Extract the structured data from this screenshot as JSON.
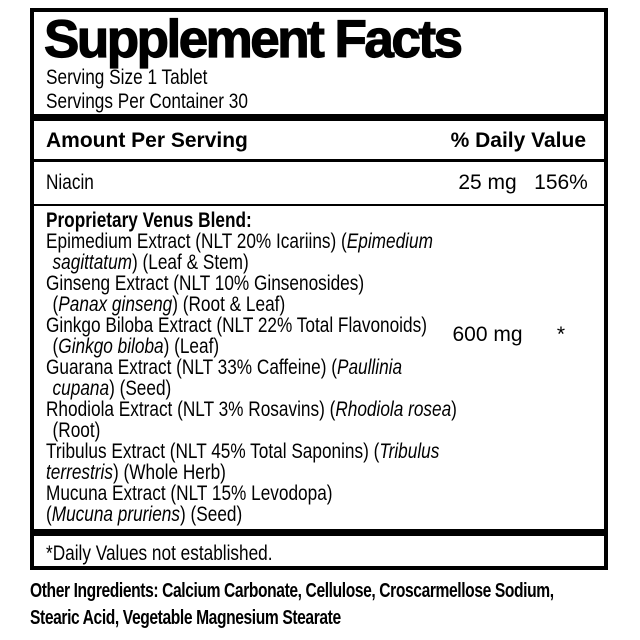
{
  "colors": {
    "text": "#000000",
    "background": "#ffffff",
    "border": "#000000"
  },
  "label": {
    "title": "Supplement Facts",
    "serving_size": "Serving Size 1 Tablet",
    "servings_per_container": "Servings Per Container 30",
    "header": {
      "amount": "Amount Per Serving",
      "daily_value": "% Daily Value"
    },
    "niacin": {
      "name": "Niacin",
      "amount": "25 mg",
      "dv": "156%"
    },
    "blend": {
      "amount": "600 mg",
      "dv": "*",
      "lines": [
        {
          "indent": false,
          "segments": [
            {
              "t": "Proprietary Venus Blend:",
              "b": true
            }
          ]
        },
        {
          "indent": false,
          "segments": [
            {
              "t": "Epimedium Extract (NLT 20% Icariins) ("
            },
            {
              "t": "Epimedium",
              "i": true
            }
          ]
        },
        {
          "indent": true,
          "segments": [
            {
              "t": "sagittatum",
              "i": true
            },
            {
              "t": ") (Leaf & Stem)"
            }
          ]
        },
        {
          "indent": false,
          "segments": [
            {
              "t": "Ginseng Extract (NLT 10% Ginsenosides)"
            }
          ]
        },
        {
          "indent": true,
          "segments": [
            {
              "t": "("
            },
            {
              "t": "Panax ginseng",
              "i": true
            },
            {
              "t": ") (Root & Leaf)"
            }
          ]
        },
        {
          "indent": false,
          "segments": [
            {
              "t": "Ginkgo Biloba Extract (NLT 22% Total Flavonoids)"
            }
          ]
        },
        {
          "indent": true,
          "segments": [
            {
              "t": "("
            },
            {
              "t": "Ginkgo biloba",
              "i": true
            },
            {
              "t": ") (Leaf)"
            }
          ]
        },
        {
          "indent": false,
          "segments": [
            {
              "t": "Guarana Extract (NLT 33% Caffeine) ("
            },
            {
              "t": "Paullinia",
              "i": true
            }
          ]
        },
        {
          "indent": true,
          "segments": [
            {
              "t": "cupana",
              "i": true
            },
            {
              "t": ") (Seed)"
            }
          ]
        },
        {
          "indent": false,
          "segments": [
            {
              "t": "Rhodiola Extract (NLT 3% Rosavins) ("
            },
            {
              "t": "Rhodiola rosea",
              "i": true
            },
            {
              "t": ")"
            }
          ]
        },
        {
          "indent": true,
          "segments": [
            {
              "t": "(Root)"
            }
          ]
        },
        {
          "indent": false,
          "segments": [
            {
              "t": "Tribulus Extract (NLT 45% Total Saponins) ("
            },
            {
              "t": "Tribulus",
              "i": true
            }
          ]
        },
        {
          "indent": false,
          "segments": [
            {
              "t": "terrestris",
              "i": true
            },
            {
              "t": ") (Whole Herb)"
            }
          ]
        },
        {
          "indent": false,
          "segments": [
            {
              "t": "Mucuna Extract (NLT 15% Levodopa)"
            }
          ]
        },
        {
          "indent": false,
          "segments": [
            {
              "t": "("
            },
            {
              "t": "Mucuna pruriens",
              "i": true
            },
            {
              "t": ") (Seed)"
            }
          ]
        }
      ]
    },
    "footnote": "*Daily Values not established.",
    "other_ingredients_lines": [
      "Other Ingredients: Calcium Carbonate, Cellulose, Croscarmellose Sodium,",
      "Stearic Acid, Vegetable Magnesium Stearate"
    ]
  }
}
